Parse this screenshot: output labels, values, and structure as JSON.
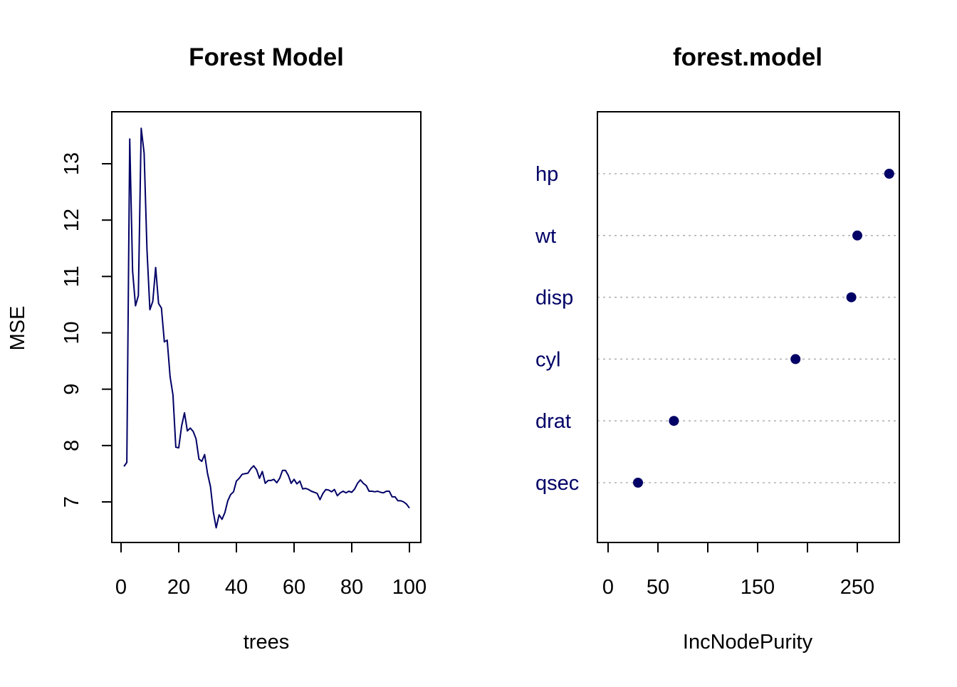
{
  "chart_data": [
    {
      "type": "line",
      "title": "Forest Model",
      "xlabel": "trees",
      "ylabel": "MSE",
      "xlim": [
        0,
        100
      ],
      "ylim": [
        6.5,
        13.7
      ],
      "xticks": [
        0,
        20,
        40,
        60,
        80,
        100
      ],
      "yticks": [
        7,
        8,
        9,
        10,
        11,
        12,
        13
      ],
      "grid": false,
      "color": "#000066",
      "x": [
        1,
        2,
        3,
        4,
        5,
        6,
        7,
        8,
        9,
        10,
        11,
        12,
        13,
        14,
        15,
        16,
        17,
        18,
        19,
        20,
        21,
        22,
        23,
        24,
        25,
        26,
        27,
        28,
        29,
        30,
        31,
        32,
        33,
        34,
        35,
        36,
        37,
        38,
        39,
        40,
        41,
        42,
        43,
        44,
        45,
        46,
        47,
        48,
        49,
        50,
        51,
        52,
        53,
        54,
        55,
        56,
        57,
        58,
        59,
        60,
        61,
        62,
        63,
        64,
        65,
        66,
        67,
        68,
        69,
        70,
        71,
        72,
        73,
        74,
        75,
        76,
        77,
        78,
        79,
        80,
        81,
        82,
        83,
        84,
        85,
        86,
        87,
        88,
        89,
        90,
        91,
        92,
        93,
        94,
        95,
        96,
        97,
        98,
        99,
        100
      ],
      "y": [
        7.63,
        7.7,
        13.44,
        11.1,
        10.48,
        10.66,
        13.63,
        13.19,
        11.48,
        10.41,
        10.56,
        11.16,
        10.52,
        10.44,
        9.84,
        9.87,
        9.22,
        8.9,
        7.97,
        7.96,
        8.35,
        8.58,
        8.26,
        8.31,
        8.25,
        8.12,
        7.76,
        7.72,
        7.84,
        7.5,
        7.27,
        6.82,
        6.54,
        6.77,
        6.69,
        6.81,
        7.02,
        7.13,
        7.18,
        7.37,
        7.42,
        7.49,
        7.5,
        7.51,
        7.59,
        7.64,
        7.57,
        7.42,
        7.54,
        7.33,
        7.38,
        7.38,
        7.4,
        7.34,
        7.42,
        7.56,
        7.56,
        7.47,
        7.33,
        7.4,
        7.32,
        7.37,
        7.23,
        7.24,
        7.22,
        7.19,
        7.17,
        7.15,
        7.04,
        7.15,
        7.22,
        7.21,
        7.18,
        7.22,
        7.11,
        7.16,
        7.19,
        7.16,
        7.19,
        7.17,
        7.23,
        7.33,
        7.39,
        7.33,
        7.29,
        7.19,
        7.19,
        7.18,
        7.19,
        7.17,
        7.16,
        7.19,
        7.19,
        7.09,
        7.09,
        7.02,
        7.02,
        7.0,
        6.96,
        6.89
      ]
    },
    {
      "type": "dotchart",
      "title": "forest.model",
      "xlabel": "IncNodePurity",
      "ylabel": "",
      "xlim": [
        -4,
        296
      ],
      "xticks": [
        0,
        50,
        100,
        150,
        200,
        250
      ],
      "xticklabels": [
        "0",
        "50",
        "",
        "150",
        "",
        "250"
      ],
      "grid": true,
      "color": "#000066",
      "categories": [
        "hp",
        "wt",
        "disp",
        "cyl",
        "drat",
        "qsec"
      ],
      "values": [
        282,
        250,
        244,
        188,
        66,
        30
      ]
    }
  ]
}
